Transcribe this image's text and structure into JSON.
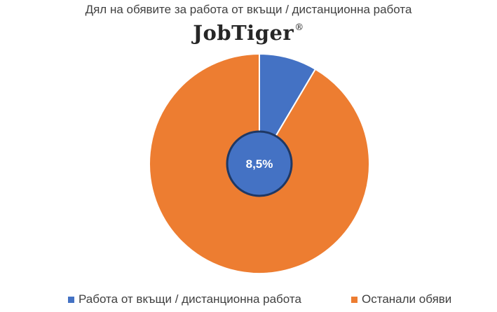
{
  "chart_data": {
    "type": "pie",
    "title": "Дял на обявите за работа от вкъщи / дистанционна работа",
    "slices": [
      {
        "label": "Работа от вкъщи / дистанционна работа",
        "value": 8.5,
        "color": "#4472C4"
      },
      {
        "label": "Останали обяви",
        "value": 91.5,
        "color": "#ED7D31"
      }
    ],
    "center_label": "8,5%",
    "legend_position": "bottom"
  },
  "logo": {
    "text": "JobTiger",
    "mark": "®"
  }
}
